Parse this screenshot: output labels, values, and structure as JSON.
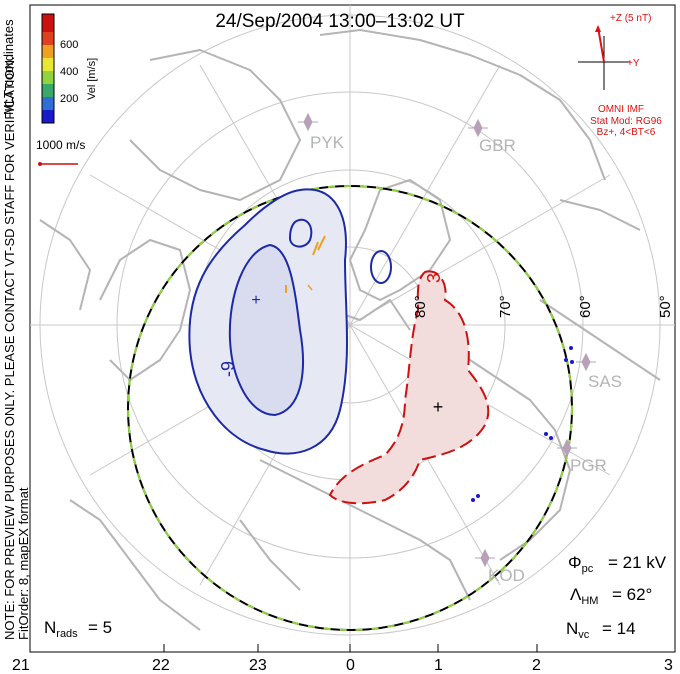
{
  "title": "24/Sep/2004 13:00–13:02 UT",
  "side_note": "NOTE: FOR PREVIEW PURPOSES ONLY. PLEASE CONTACT VT-SD STAFF FOR VERIFICATION.",
  "fit_order": "FitOrder: 8, mapEX format",
  "coord_label": "MLT coordinates",
  "colorbar": {
    "title": "Vel [m/s]",
    "ticks": [
      "600",
      "400",
      "200"
    ],
    "colors": [
      "#1a1acc",
      "#2e6fd6",
      "#3aa86b",
      "#8fd43c",
      "#e8e832",
      "#f0a020",
      "#e04020",
      "#cc1010"
    ]
  },
  "velocity_ref": "1000 m/s",
  "imf": {
    "bz_label": "+Z (5 nT)",
    "by_label": "+Y",
    "source": "OMNI IMF",
    "stat_mod": "Stat Mod: RG96",
    "condition": "Bz+, 4<BT<6",
    "color": "#dd1111"
  },
  "stations": [
    "PYK",
    "GBR",
    "SAS",
    "PGR",
    "KOD"
  ],
  "lat_labels": [
    "80°",
    "70°",
    "60°",
    "50°"
  ],
  "contour_labels": {
    "negative": "-9",
    "positive": "3"
  },
  "mlt_ticks": [
    "21",
    "22",
    "23",
    "0",
    "1",
    "2",
    "3"
  ],
  "stats": {
    "phi_pc_value": "= 21 kV",
    "lambda_hm_value": "= 62°",
    "n_vc_value": "= 14",
    "n_rads_value": "= 5"
  },
  "colors": {
    "negative_fill": "#e6e8f4",
    "negative_line": "#1c2aa6",
    "positive_fill": "#f3dcdc",
    "positive_line": "#cc1111",
    "coast": "#b4b4b4",
    "grid": "#c8c8c8"
  }
}
